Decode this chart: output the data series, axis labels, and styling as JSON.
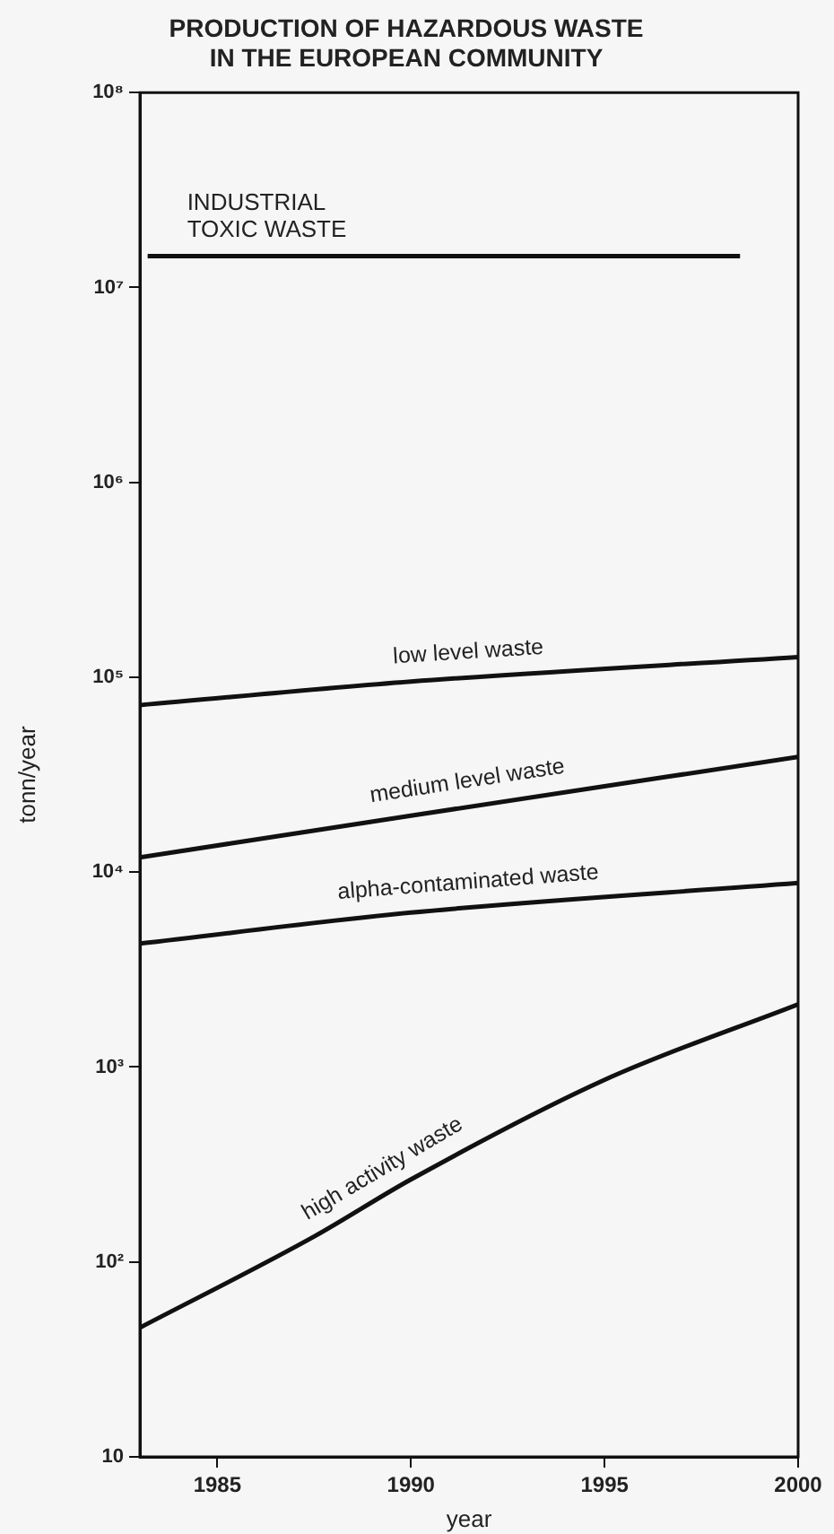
{
  "chart_data": {
    "type": "line",
    "title": "PRODUCTION OF HAZARDOUS WASTE\nIN THE EUROPEAN COMMUNITY",
    "xlabel": "year",
    "ylabel": "tonn/year",
    "log": "y",
    "xlim": [
      1983,
      2000
    ],
    "xticks": [
      1985,
      1990,
      1995,
      2000
    ],
    "ylim": [
      10,
      100000000
    ],
    "yticks": [
      10,
      {
        "value": 100,
        "label": "10²"
      },
      {
        "value": 1000,
        "label": "10³"
      },
      {
        "value": 10000,
        "label": "10⁴"
      },
      {
        "value": 100000,
        "label": "10⁵"
      },
      {
        "value": 1000000,
        "label": "10⁶"
      },
      {
        "value": 10000000,
        "label": "10⁷"
      },
      {
        "value": 100000000,
        "label": "10⁸"
      }
    ],
    "grid": false,
    "legend": false,
    "marker": "none",
    "line_style": "solid",
    "series": [
      {
        "name": "INDUSTRIAL\nTOXIC WASTE",
        "color": "#111111",
        "x": [
          1983.2,
          1990,
          1998.5
        ],
        "values": [
          14500000,
          14500000,
          14500000
        ]
      },
      {
        "name": "low level waste",
        "color": "#111111",
        "x": [
          1983,
          1990,
          2000
        ],
        "values": [
          72000,
          95000,
          127000
        ]
      },
      {
        "name": "medium level waste",
        "color": "#111111",
        "x": [
          1983,
          1990,
          2000
        ],
        "values": [
          11900,
          19500,
          39000
        ]
      },
      {
        "name": "alpha-contaminated waste",
        "color": "#111111",
        "x": [
          1983,
          1990,
          2000
        ],
        "values": [
          4300,
          6200,
          8800
        ]
      },
      {
        "name": "high activity waste",
        "color": "#111111",
        "x": [
          1983,
          1987.5,
          1990,
          1995,
          2000
        ],
        "values": [
          46,
          135,
          265,
          860,
          2100
        ]
      }
    ]
  }
}
